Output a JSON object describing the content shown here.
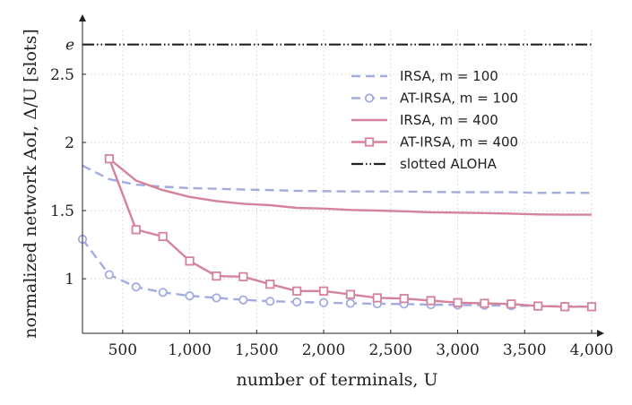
{
  "chart_data": {
    "type": "line",
    "xlabel": "number of terminals, U",
    "ylabel": "normalized network AoI, Δ/U [slots]",
    "xlim": [
      200,
      4000
    ],
    "ylim": [
      0.6,
      2.9
    ],
    "x_ticks": [
      500,
      1000,
      1500,
      2000,
      2500,
      3000,
      3500,
      4000
    ],
    "x_tick_labels": [
      "500",
      "1,000",
      "1,500",
      "2,000",
      "2,500",
      "3,000",
      "3,500",
      "4,000"
    ],
    "y_ticks": [
      1,
      1.5,
      2,
      2.5,
      2.71828
    ],
    "y_tick_labels": [
      "1",
      "1.5",
      "2",
      "2.5",
      "e"
    ],
    "grid": true,
    "legend_position": "top-right",
    "series": [
      {
        "name": "IRSA, m = 100",
        "color": "#a3acdf",
        "style": "dashed",
        "marker": "none",
        "x": [
          200,
          400,
          600,
          800,
          1000,
          1200,
          1400,
          1600,
          1800,
          2000,
          2200,
          2400,
          2600,
          2800,
          3000,
          3200,
          3400,
          3600,
          3800,
          4000
        ],
        "y": [
          1.83,
          1.73,
          1.69,
          1.675,
          1.665,
          1.66,
          1.655,
          1.65,
          1.645,
          1.643,
          1.64,
          1.64,
          1.64,
          1.637,
          1.635,
          1.635,
          1.635,
          1.63,
          1.632,
          1.63
        ]
      },
      {
        "name": "AT-IRSA, m = 100",
        "color": "#a3acdf",
        "style": "dashed",
        "marker": "circle",
        "x": [
          200,
          400,
          600,
          800,
          1000,
          1200,
          1400,
          1600,
          1800,
          2000,
          2200,
          2400,
          2600,
          2800,
          3000,
          3200,
          3400,
          3600,
          3800,
          4000
        ],
        "y": [
          1.29,
          1.03,
          0.94,
          0.9,
          0.875,
          0.86,
          0.845,
          0.835,
          0.83,
          0.825,
          0.82,
          0.817,
          0.815,
          0.81,
          0.808,
          0.805,
          0.803,
          0.8,
          0.798,
          0.795
        ]
      },
      {
        "name": "IRSA, m = 400",
        "color": "#d4839b",
        "style": "solid",
        "marker": "none",
        "x": [
          400,
          600,
          800,
          1000,
          1200,
          1400,
          1600,
          1800,
          2000,
          2200,
          2400,
          2600,
          2800,
          3000,
          3200,
          3400,
          3600,
          3800,
          4000
        ],
        "y": [
          1.88,
          1.72,
          1.65,
          1.6,
          1.57,
          1.55,
          1.54,
          1.52,
          1.515,
          1.505,
          1.5,
          1.495,
          1.488,
          1.485,
          1.482,
          1.478,
          1.472,
          1.47,
          1.47
        ]
      },
      {
        "name": "AT-IRSA, m = 400",
        "color": "#d4839b",
        "style": "solid",
        "marker": "square",
        "x": [
          400,
          600,
          800,
          1000,
          1200,
          1400,
          1600,
          1800,
          2000,
          2200,
          2400,
          2600,
          2800,
          3000,
          3200,
          3400,
          3600,
          3800,
          4000
        ],
        "y": [
          1.88,
          1.36,
          1.31,
          1.13,
          1.02,
          1.015,
          0.96,
          0.91,
          0.91,
          0.885,
          0.86,
          0.855,
          0.84,
          0.825,
          0.82,
          0.815,
          0.8,
          0.795,
          0.795
        ]
      },
      {
        "name": "slotted ALOHA",
        "color": "#222222",
        "style": "dashdotdot",
        "marker": "none",
        "x": [
          200,
          4000
        ],
        "y": [
          2.71828,
          2.71828
        ]
      }
    ]
  }
}
